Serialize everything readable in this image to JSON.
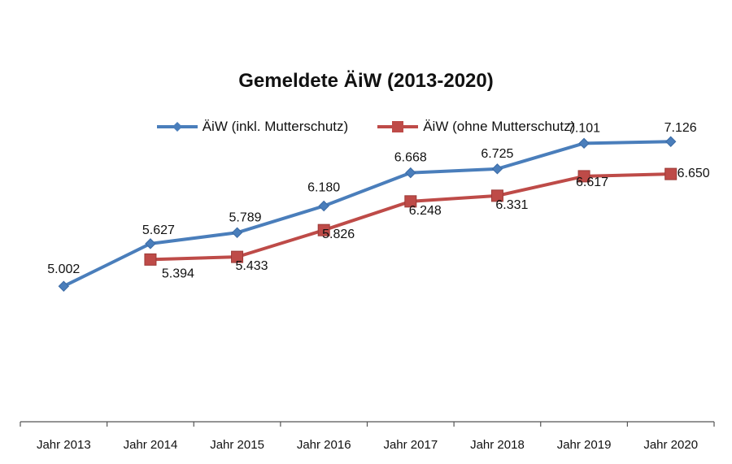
{
  "chart_data": {
    "type": "line",
    "title": "Gemeldete ÄiW (2013-2020)",
    "categories": [
      "Jahr 2013",
      "Jahr 2014",
      "Jahr 2015",
      "Jahr 2016",
      "Jahr 2017",
      "Jahr 2018",
      "Jahr 2019",
      "Jahr 2020"
    ],
    "series": [
      {
        "name": "ÄiW (inkl. Mutterschutz)",
        "color": "#4a7ebb",
        "marker": "diamond",
        "values": [
          5002,
          5627,
          5789,
          6180,
          6668,
          6725,
          7101,
          7126
        ],
        "labels": [
          "5.002",
          "5.627",
          "5.789",
          "6.180",
          "6.668",
          "6.725",
          "7.101",
          "7.126"
        ]
      },
      {
        "name": "ÄiW (ohne Mutterschutz)",
        "color": "#be4b48",
        "marker": "square",
        "values": [
          null,
          5394,
          5433,
          5826,
          6248,
          6331,
          6617,
          6650
        ],
        "labels": [
          null,
          "5.394",
          "5.433",
          "5.826",
          "6.248",
          "6.331",
          "6.617",
          "6.650"
        ]
      }
    ],
    "ylim": [
      3000,
      8000
    ],
    "grid": false,
    "legend_position": "top"
  }
}
